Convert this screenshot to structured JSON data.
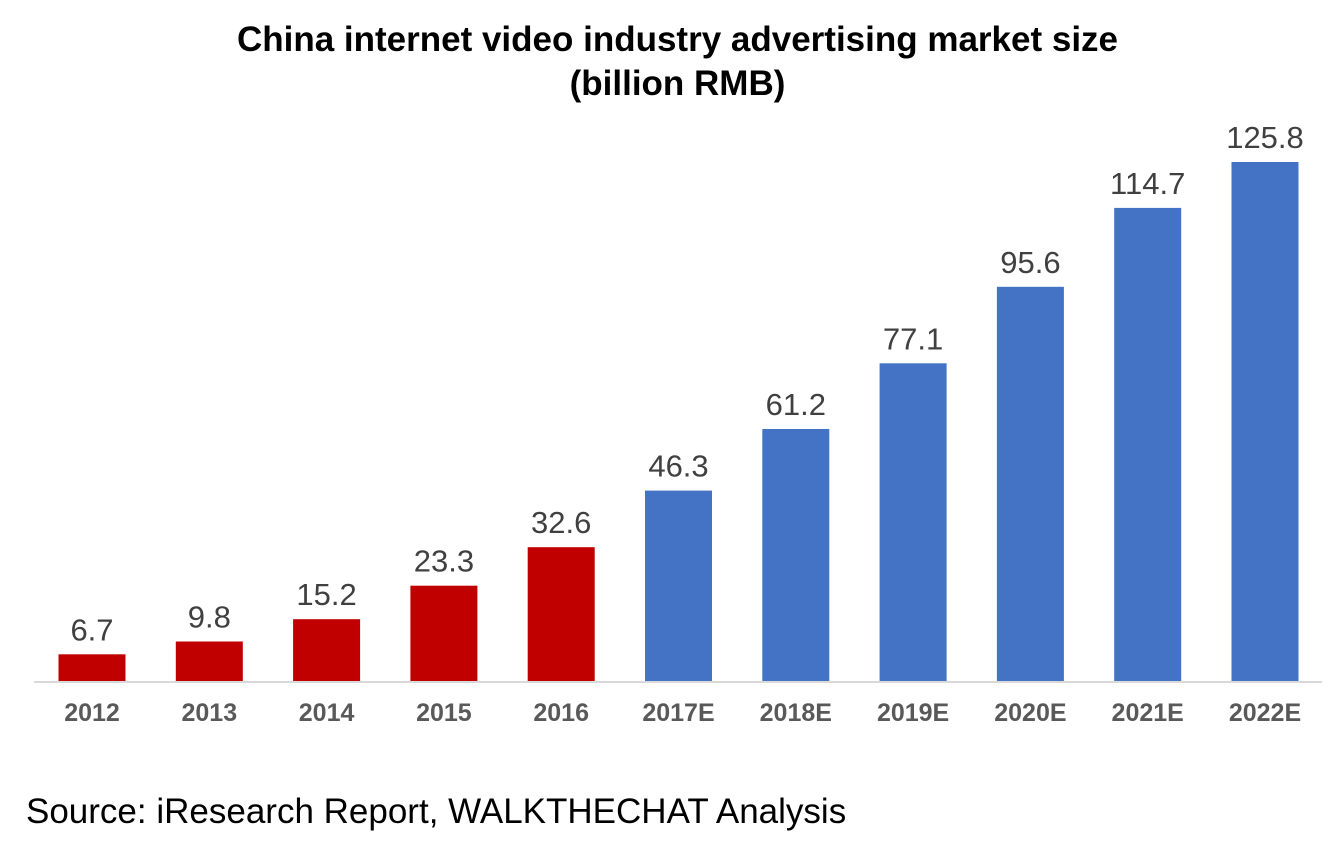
{
  "chart_data": {
    "type": "bar",
    "title_lines": [
      "China internet video industry advertising market size",
      "(billion RMB)"
    ],
    "categories": [
      "2012",
      "2013",
      "2014",
      "2015",
      "2016",
      "2017E",
      "2018E",
      "2019E",
      "2020E",
      "2021E",
      "2022E"
    ],
    "values": [
      6.7,
      9.8,
      15.2,
      23.3,
      32.6,
      46.3,
      61.2,
      77.1,
      95.6,
      114.7,
      125.8
    ],
    "value_labels": [
      "6.7",
      "9.8",
      "15.2",
      "23.3",
      "32.6",
      "46.3",
      "61.2",
      "77.1",
      "95.6",
      "114.7",
      "125.8"
    ],
    "bar_colors": [
      "#C00000",
      "#C00000",
      "#C00000",
      "#C00000",
      "#C00000",
      "#4472C4",
      "#4472C4",
      "#4472C4",
      "#4472C4",
      "#4472C4",
      "#4472C4"
    ],
    "xlabel": "",
    "ylabel": "",
    "ylim": [
      0,
      125.8
    ],
    "grid": false,
    "legend": "none"
  },
  "source": "Source: iResearch Report, WALKTHECHAT Analysis"
}
